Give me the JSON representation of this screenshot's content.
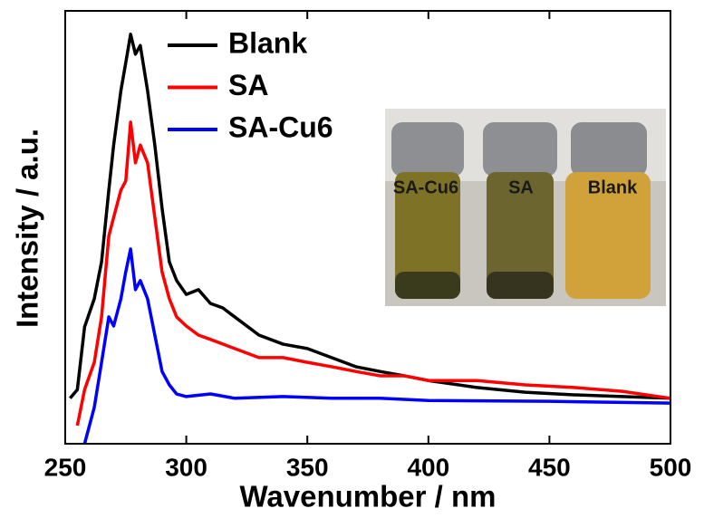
{
  "chart_data": {
    "type": "line",
    "x_label": "Wavenumber / nm",
    "y_label": "Intensity / a.u.",
    "xlim": [
      250,
      500
    ],
    "xticks": [
      250,
      300,
      350,
      400,
      450,
      500
    ],
    "ylim": [
      0,
      100
    ],
    "inset_labels": [
      "SA-Cu6",
      "SA",
      "Blank"
    ],
    "series": [
      {
        "name": "Blank",
        "color": "#000000",
        "x": [
          252,
          255,
          258,
          262,
          265,
          268,
          270,
          273,
          275,
          277,
          279,
          281,
          284,
          287,
          290,
          293,
          296,
          300,
          305,
          310,
          315,
          320,
          330,
          340,
          350,
          360,
          370,
          380,
          390,
          400,
          420,
          440,
          460,
          480,
          500
        ],
        "values": [
          10.5,
          12.5,
          27,
          33.5,
          42,
          58.6,
          69,
          81.6,
          88,
          94.6,
          90,
          92,
          81.6,
          69,
          54.4,
          42,
          37.7,
          34.5,
          35.6,
          32.4,
          31.4,
          29.3,
          25.1,
          23,
          22,
          19.9,
          17.8,
          16.7,
          15.7,
          14.6,
          13,
          11.9,
          11.3,
          10.9,
          10.5
        ]
      },
      {
        "name": "SA",
        "color": "#ff0000",
        "x": [
          255,
          258,
          262,
          265,
          268,
          270,
          273,
          275,
          277,
          279,
          281,
          284,
          287,
          290,
          293,
          296,
          300,
          305,
          310,
          320,
          330,
          340,
          350,
          360,
          370,
          380,
          390,
          400,
          420,
          440,
          460,
          480,
          500
        ],
        "values": [
          4.2,
          12.5,
          18.8,
          29.3,
          48,
          52.3,
          58.6,
          60.7,
          74.3,
          64.9,
          69,
          64.9,
          52.3,
          39.7,
          33.5,
          29.3,
          27.2,
          25.1,
          24.1,
          22,
          19.9,
          19.9,
          18.8,
          17.8,
          16.7,
          15.7,
          15.7,
          14.6,
          14.6,
          13.6,
          13,
          12.1,
          10.5
        ]
      },
      {
        "name": "SA-Cu6",
        "color": "#0000ff",
        "x": [
          258,
          262,
          265,
          268,
          270,
          273,
          275,
          277,
          279,
          281,
          284,
          287,
          290,
          293,
          296,
          300,
          310,
          320,
          340,
          360,
          380,
          400,
          450,
          500
        ],
        "values": [
          0,
          8.4,
          18.8,
          29.3,
          27.2,
          33.5,
          39.7,
          45,
          35.6,
          37.7,
          33.5,
          25.1,
          16.7,
          13.6,
          11.5,
          10.9,
          11.5,
          10.5,
          10.9,
          10.5,
          10.5,
          10,
          9.8,
          9.4
        ]
      }
    ]
  }
}
